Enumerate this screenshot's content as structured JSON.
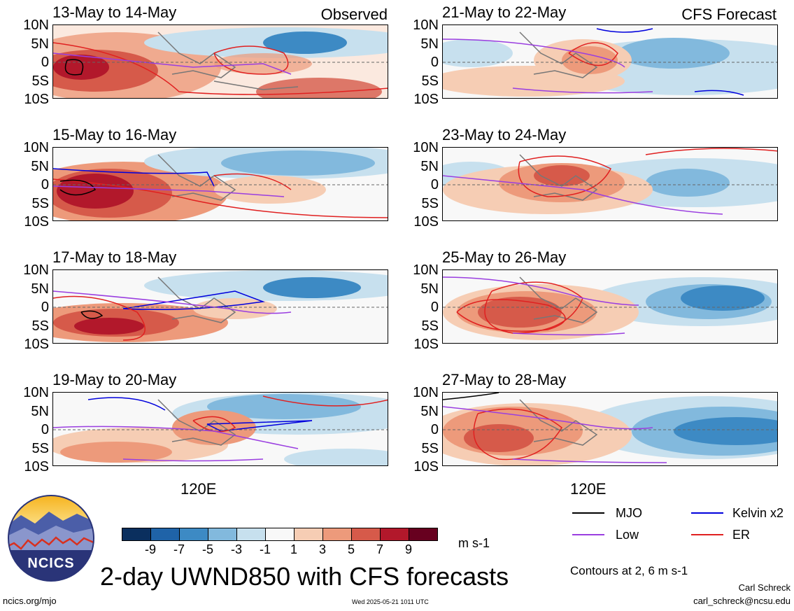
{
  "panels": {
    "left": [
      {
        "title": "13-May to 14-May",
        "corner": "Observed"
      },
      {
        "title": "15-May to 16-May",
        "corner": ""
      },
      {
        "title": "17-May to 18-May",
        "corner": ""
      },
      {
        "title": "19-May to 20-May",
        "corner": ""
      }
    ],
    "right": [
      {
        "title": "21-May to 22-May",
        "corner": "CFS Forecast"
      },
      {
        "title": "23-May to 24-May",
        "corner": ""
      },
      {
        "title": "25-May to 26-May",
        "corner": ""
      },
      {
        "title": "27-May to 28-May",
        "corner": ""
      }
    ]
  },
  "lat_labels": [
    "10N",
    "5N",
    "0",
    "5S",
    "10S"
  ],
  "lon_label": "120E",
  "colorbar": {
    "ticks": [
      "-9",
      "-7",
      "-5",
      "-3",
      "-1",
      "1",
      "3",
      "5",
      "7",
      "9"
    ],
    "unit": "m s-1",
    "colors": [
      "#0a2f5e",
      "#1f63a8",
      "#3d8ac4",
      "#82b9dd",
      "#c7e0ee",
      "#f8f8f8",
      "#f6cdb4",
      "#ed9a7b",
      "#d65a4a",
      "#b2182b",
      "#67001f"
    ]
  },
  "legend": {
    "mjo": "MJO",
    "kelvin": "Kelvin x2",
    "low": "Low",
    "er": "ER",
    "colors": {
      "mjo": "#000000",
      "kelvin": "#0000dd",
      "low": "#9a3ee0",
      "er": "#e02020"
    }
  },
  "title": "2-day UWND850 with CFS forecasts",
  "contours_note": "Contours at 2, 6 m s-1",
  "logo_text": "NCICS",
  "footer": {
    "url": "ncics.org/mjo",
    "timestamp": "Wed 2025-05-21 1011 UTC",
    "author": "Carl Schreck",
    "email": "carl_schreck@ncsu.edu"
  }
}
